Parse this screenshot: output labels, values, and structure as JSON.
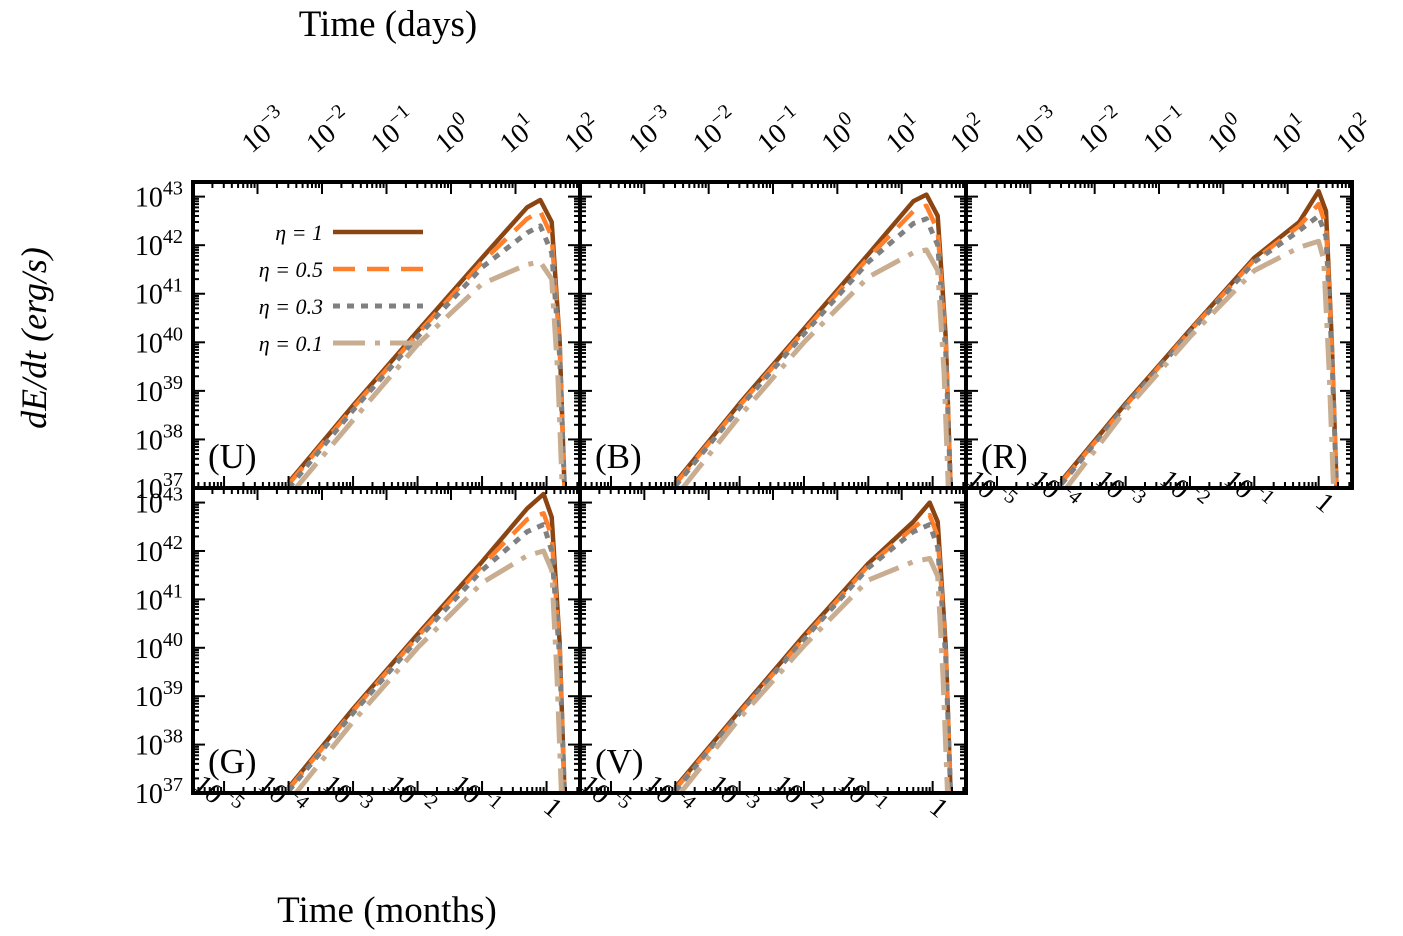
{
  "figure": {
    "top_axis_label": "Time (days)",
    "bottom_axis_label": "Time (months)",
    "y_axis_label": "dE/dt (erg/s)"
  },
  "colors": {
    "eta_1": "#8B4513",
    "eta_0_5": "#FF7F2A",
    "eta_0_3": "#808080",
    "eta_0_1": "#C8AD91",
    "frame": "#000000"
  },
  "chart_data": [
    {
      "type": "line",
      "panel_label": "(U)",
      "xscale": "log",
      "yscale": "log",
      "xlabel": "Time (months)",
      "x2label": "Time (days)",
      "ylabel": "dE/dt (erg/s)",
      "xlim": [
        3.3e-06,
        3.3
      ],
      "x2lim": [
        0.0001,
        100
      ],
      "ylim": [
        1e+37,
        2e+43
      ],
      "xticklabels": [
        "10^-5",
        "10^-4",
        "10^-3",
        "10^-2",
        "10^-1",
        "1"
      ],
      "x2ticklabels": [
        "10^-3",
        "10^-2",
        "10^-1",
        "10^0",
        "10^1",
        "10^2"
      ],
      "yticklabels": [
        "10^37",
        "10^38",
        "10^39",
        "10^40",
        "10^41",
        "10^42",
        "10^43"
      ],
      "legend": {
        "location": "top-left"
      },
      "series": [
        {
          "name": "η = 1",
          "x": [
            0.0001,
            0.001,
            0.01,
            0.1,
            0.5,
            0.8,
            1.2,
            1.6,
            1.9
          ],
          "y": [
            1.3e+37,
            5e+38,
            1.7e+40,
            5.5e+41,
            6e+42,
            8.5e+42,
            3e+42,
            1e+40,
            1e+37
          ]
        },
        {
          "name": "η = 0.5",
          "x": [
            0.0001,
            0.001,
            0.01,
            0.1,
            0.5,
            0.8,
            1.2,
            1.6,
            1.9
          ],
          "y": [
            1.2e+37,
            4.5e+38,
            1.5e+40,
            4.5e+41,
            3.5e+42,
            5e+42,
            1.5e+42,
            8e+39,
            1e+37
          ]
        },
        {
          "name": "η = 0.3",
          "x": [
            0.0001,
            0.001,
            0.01,
            0.1,
            0.5,
            0.8,
            1.2,
            1.6,
            1.9
          ],
          "y": [
            1e+37,
            4e+38,
            1.3e+40,
            3.5e+41,
            1.8e+42,
            2.5e+42,
            7e+41,
            5e+39,
            1e+37
          ]
        },
        {
          "name": "η = 0.1",
          "x": [
            0.00013,
            0.001,
            0.01,
            0.1,
            0.5,
            0.8,
            1.2,
            1.5,
            1.75
          ],
          "y": [
            1e+37,
            2.5e+38,
            9e+39,
            1.6e+41,
            4e+41,
            4.5e+41,
            2e+41,
            2e+39,
            1e+37
          ]
        }
      ]
    },
    {
      "type": "line",
      "panel_label": "(B)",
      "xscale": "log",
      "yscale": "log",
      "xlabel": "Time (months)",
      "x2label": "Time (days)",
      "ylabel": "dE/dt (erg/s)",
      "xlim": [
        3.3e-06,
        3.3
      ],
      "x2lim": [
        0.0001,
        100
      ],
      "ylim": [
        1e+37,
        2e+43
      ],
      "xticklabels": [
        "10^-5",
        "10^-4",
        "10^-3",
        "10^-2",
        "10^-1",
        "1"
      ],
      "x2ticklabels": [
        "10^-3",
        "10^-2",
        "10^-1",
        "10^0",
        "10^1",
        "10^2"
      ],
      "series": [
        {
          "name": "η = 1",
          "x": [
            0.0001,
            0.001,
            0.01,
            0.1,
            0.5,
            0.8,
            1.2,
            1.6,
            1.9
          ],
          "y": [
            1.3e+37,
            5.5e+38,
            1.9e+40,
            6.5e+41,
            8e+42,
            1.1e+43,
            4e+42,
            1.2e+40,
            1e+37
          ]
        },
        {
          "name": "η = 0.5",
          "x": [
            0.0001,
            0.001,
            0.01,
            0.1,
            0.5,
            0.8,
            1.2,
            1.6,
            1.9
          ],
          "y": [
            1.2e+37,
            5e+38,
            1.7e+40,
            5.5e+41,
            5e+42,
            6.5e+42,
            2e+42,
            9e+39,
            1e+37
          ]
        },
        {
          "name": "η = 0.3",
          "x": [
            0.0001,
            0.001,
            0.01,
            0.1,
            0.5,
            0.8,
            1.2,
            1.6,
            1.9
          ],
          "y": [
            1.1e+37,
            4.5e+38,
            1.5e+40,
            4.5e+41,
            2.8e+42,
            3.5e+42,
            1e+42,
            6e+39,
            1e+37
          ]
        },
        {
          "name": "η = 0.1",
          "x": [
            0.00013,
            0.001,
            0.01,
            0.1,
            0.5,
            0.8,
            1.2,
            1.5,
            1.75
          ],
          "y": [
            1e+37,
            3e+38,
            1e+40,
            2.2e+41,
            7e+41,
            8e+41,
            3e+41,
            2.5e+39,
            1e+37
          ]
        }
      ]
    },
    {
      "type": "line",
      "panel_label": "(R)",
      "xscale": "log",
      "yscale": "log",
      "xlabel": "Time (months)",
      "x2label": "Time (days)",
      "ylabel": "dE/dt (erg/s)",
      "xlim": [
        3.3e-06,
        3.3
      ],
      "x2lim": [
        0.0001,
        100
      ],
      "ylim": [
        1e+37,
        2e+43
      ],
      "xticklabels": [
        "10^-5",
        "10^-4",
        "10^-3",
        "10^-2",
        "10^-1",
        "1"
      ],
      "x2ticklabels": [
        "10^-3",
        "10^-2",
        "10^-1",
        "10^0",
        "10^1",
        "10^2"
      ],
      "series": [
        {
          "name": "η = 1",
          "x": [
            0.0001,
            0.001,
            0.01,
            0.1,
            0.5,
            1.0,
            1.3,
            1.6,
            1.9
          ],
          "y": [
            1.4e+37,
            5.5e+38,
            1.8e+40,
            5.5e+41,
            3e+42,
            1.3e+43,
            5e+42,
            1e+40,
            1e+37
          ]
        },
        {
          "name": "η = 0.5",
          "x": [
            0.0001,
            0.001,
            0.01,
            0.1,
            0.5,
            1.0,
            1.3,
            1.6,
            1.9
          ],
          "y": [
            1.3e+37,
            5e+38,
            1.7e+40,
            5e+41,
            2.5e+42,
            7e+42,
            2.5e+42,
            8e+39,
            1e+37
          ]
        },
        {
          "name": "η = 0.3",
          "x": [
            0.0001,
            0.001,
            0.01,
            0.1,
            0.5,
            1.0,
            1.3,
            1.6,
            1.9
          ],
          "y": [
            1.2e+37,
            5e+38,
            1.6e+40,
            4.5e+41,
            2e+42,
            4e+42,
            1.5e+42,
            6e+39,
            1e+37
          ]
        },
        {
          "name": "η = 0.1",
          "x": [
            0.00012,
            0.001,
            0.01,
            0.1,
            0.5,
            1.0,
            1.2,
            1.45,
            1.7
          ],
          "y": [
            1e+37,
            4e+38,
            1.3e+40,
            3e+41,
            9e+41,
            1.2e+42,
            5e+41,
            3e+39,
            1e+37
          ]
        }
      ]
    },
    {
      "type": "line",
      "panel_label": "(G)",
      "xscale": "log",
      "yscale": "log",
      "xlabel": "Time (months)",
      "x2label": "Time (days)",
      "ylabel": "dE/dt (erg/s)",
      "xlim": [
        3.3e-06,
        3.3
      ],
      "x2lim": [
        0.0001,
        100
      ],
      "ylim": [
        1e+37,
        2e+43
      ],
      "xticklabels": [
        "10^-5",
        "10^-4",
        "10^-3",
        "10^-2",
        "10^-1",
        "1"
      ],
      "yticklabels": [
        "10^37",
        "10^38",
        "10^39",
        "10^40",
        "10^41",
        "10^42",
        "10^43"
      ],
      "series": [
        {
          "name": "η = 1",
          "x": [
            0.0001,
            0.001,
            0.01,
            0.1,
            0.5,
            0.9,
            1.2,
            1.6,
            1.9
          ],
          "y": [
            1.3e+37,
            5.5e+38,
            1.9e+40,
            6e+41,
            7.5e+42,
            1.5e+43,
            5e+42,
            1.2e+40,
            1e+37
          ]
        },
        {
          "name": "η = 0.5",
          "x": [
            0.0001,
            0.001,
            0.01,
            0.1,
            0.5,
            0.9,
            1.2,
            1.6,
            1.9
          ],
          "y": [
            1.2e+37,
            5e+38,
            1.7e+40,
            5e+41,
            4.5e+42,
            6e+42,
            2e+42,
            9e+39,
            1e+37
          ]
        },
        {
          "name": "η = 0.3",
          "x": [
            0.0001,
            0.001,
            0.01,
            0.1,
            0.5,
            0.9,
            1.2,
            1.6,
            1.9
          ],
          "y": [
            1.1e+37,
            4.5e+38,
            1.5e+40,
            4e+41,
            2.5e+42,
            3.5e+42,
            1e+42,
            6e+39,
            1e+37
          ]
        },
        {
          "name": "η = 0.1",
          "x": [
            0.00013,
            0.001,
            0.01,
            0.1,
            0.5,
            0.9,
            1.2,
            1.45,
            1.7
          ],
          "y": [
            1e+37,
            3e+38,
            1e+40,
            2.2e+41,
            8e+41,
            1e+42,
            4e+41,
            2.5e+39,
            1e+37
          ]
        }
      ]
    },
    {
      "type": "line",
      "panel_label": "(V)",
      "xscale": "log",
      "yscale": "log",
      "xlabel": "Time (months)",
      "x2label": "Time (days)",
      "ylabel": "dE/dt (erg/s)",
      "xlim": [
        3.3e-06,
        3.3
      ],
      "x2lim": [
        0.0001,
        100
      ],
      "ylim": [
        1e+37,
        2e+43
      ],
      "xticklabels": [
        "10^-5",
        "10^-4",
        "10^-3",
        "10^-2",
        "10^-1",
        "1"
      ],
      "series": [
        {
          "name": "η = 1",
          "x": [
            0.0001,
            0.001,
            0.01,
            0.1,
            0.5,
            0.9,
            1.2,
            1.6,
            1.9
          ],
          "y": [
            1.3e+37,
            5e+38,
            1.8e+40,
            5.5e+41,
            4e+42,
            1e+43,
            4e+42,
            1e+40,
            1e+37
          ]
        },
        {
          "name": "η = 0.5",
          "x": [
            0.0001,
            0.001,
            0.01,
            0.1,
            0.5,
            0.9,
            1.2,
            1.6,
            1.9
          ],
          "y": [
            1.2e+37,
            4.5e+38,
            1.6e+40,
            5e+41,
            3e+42,
            5.5e+42,
            2e+42,
            8e+39,
            1e+37
          ]
        },
        {
          "name": "η = 0.3",
          "x": [
            0.0001,
            0.001,
            0.01,
            0.1,
            0.5,
            0.9,
            1.2,
            1.6,
            1.9
          ],
          "y": [
            1.1e+37,
            4.5e+38,
            1.5e+40,
            4.5e+41,
            2.5e+42,
            3.5e+42,
            1.2e+42,
            6e+39,
            1e+37
          ]
        },
        {
          "name": "η = 0.1",
          "x": [
            0.00012,
            0.001,
            0.01,
            0.1,
            0.5,
            0.9,
            1.2,
            1.45,
            1.7
          ],
          "y": [
            1e+37,
            3.5e+38,
            1.1e+40,
            2.5e+41,
            6e+41,
            7e+41,
            3e+41,
            2.5e+39,
            1e+37
          ]
        }
      ]
    }
  ]
}
